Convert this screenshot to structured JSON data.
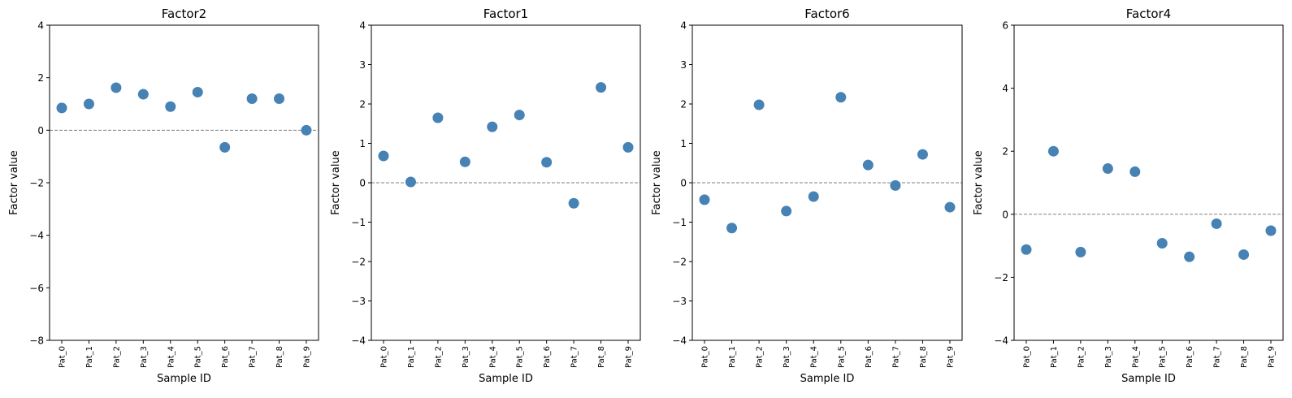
{
  "chart_data": [
    {
      "type": "scatter",
      "title": "Factor2",
      "xlabel": "Sample ID",
      "ylabel": "Factor value",
      "categories": [
        "Pat_0",
        "Pat_1",
        "Pat_2",
        "Pat_3",
        "Pat_4",
        "Pat_5",
        "Pat_6",
        "Pat_7",
        "Pat_8",
        "Pat_9"
      ],
      "values": [
        0.85,
        1.0,
        1.62,
        1.37,
        0.9,
        1.45,
        -0.65,
        1.2,
        1.2,
        0.0
      ],
      "ylim": [
        -8,
        4
      ],
      "yticks": [
        -8,
        -6,
        -4,
        -2,
        0,
        2,
        4
      ],
      "zero_line": true,
      "grid": false
    },
    {
      "type": "scatter",
      "title": "Factor1",
      "xlabel": "Sample ID",
      "ylabel": "Factor value",
      "categories": [
        "Pat_0",
        "Pat_1",
        "Pat_2",
        "Pat_3",
        "Pat_4",
        "Pat_5",
        "Pat_6",
        "Pat_7",
        "Pat_8",
        "Pat_9"
      ],
      "values": [
        0.68,
        0.02,
        1.65,
        0.53,
        1.42,
        1.72,
        0.52,
        -0.52,
        2.42,
        0.9
      ],
      "ylim": [
        -4,
        4
      ],
      "yticks": [
        -4,
        -3,
        -2,
        -1,
        0,
        1,
        2,
        3,
        4
      ],
      "zero_line": true,
      "grid": false
    },
    {
      "type": "scatter",
      "title": "Factor6",
      "xlabel": "Sample ID",
      "ylabel": "Factor value",
      "categories": [
        "Pat_0",
        "Pat_1",
        "Pat_2",
        "Pat_3",
        "Pat_4",
        "Pat_5",
        "Pat_6",
        "Pat_7",
        "Pat_8",
        "Pat_9"
      ],
      "values": [
        -0.43,
        -1.15,
        1.98,
        -0.72,
        -0.35,
        2.17,
        0.45,
        -0.07,
        0.72,
        -0.62
      ],
      "ylim": [
        -4,
        4
      ],
      "yticks": [
        -4,
        -3,
        -2,
        -1,
        0,
        1,
        2,
        3,
        4
      ],
      "zero_line": true,
      "grid": false
    },
    {
      "type": "scatter",
      "title": "Factor4",
      "xlabel": "Sample ID",
      "ylabel": "Factor value",
      "categories": [
        "Pat_0",
        "Pat_1",
        "Pat_2",
        "Pat_3",
        "Pat_4",
        "Pat_5",
        "Pat_6",
        "Pat_7",
        "Pat_8",
        "Pat_9"
      ],
      "values": [
        -1.12,
        2.0,
        -1.2,
        1.45,
        1.35,
        -0.92,
        -1.35,
        -0.3,
        -1.28,
        -0.52
      ],
      "ylim": [
        -4,
        6
      ],
      "yticks": [
        -4,
        -2,
        0,
        2,
        4,
        6
      ],
      "zero_line": true,
      "grid": false
    }
  ],
  "colors": {
    "marker": "#4682b4",
    "zero_line": "#808080",
    "axes": "#000000"
  }
}
